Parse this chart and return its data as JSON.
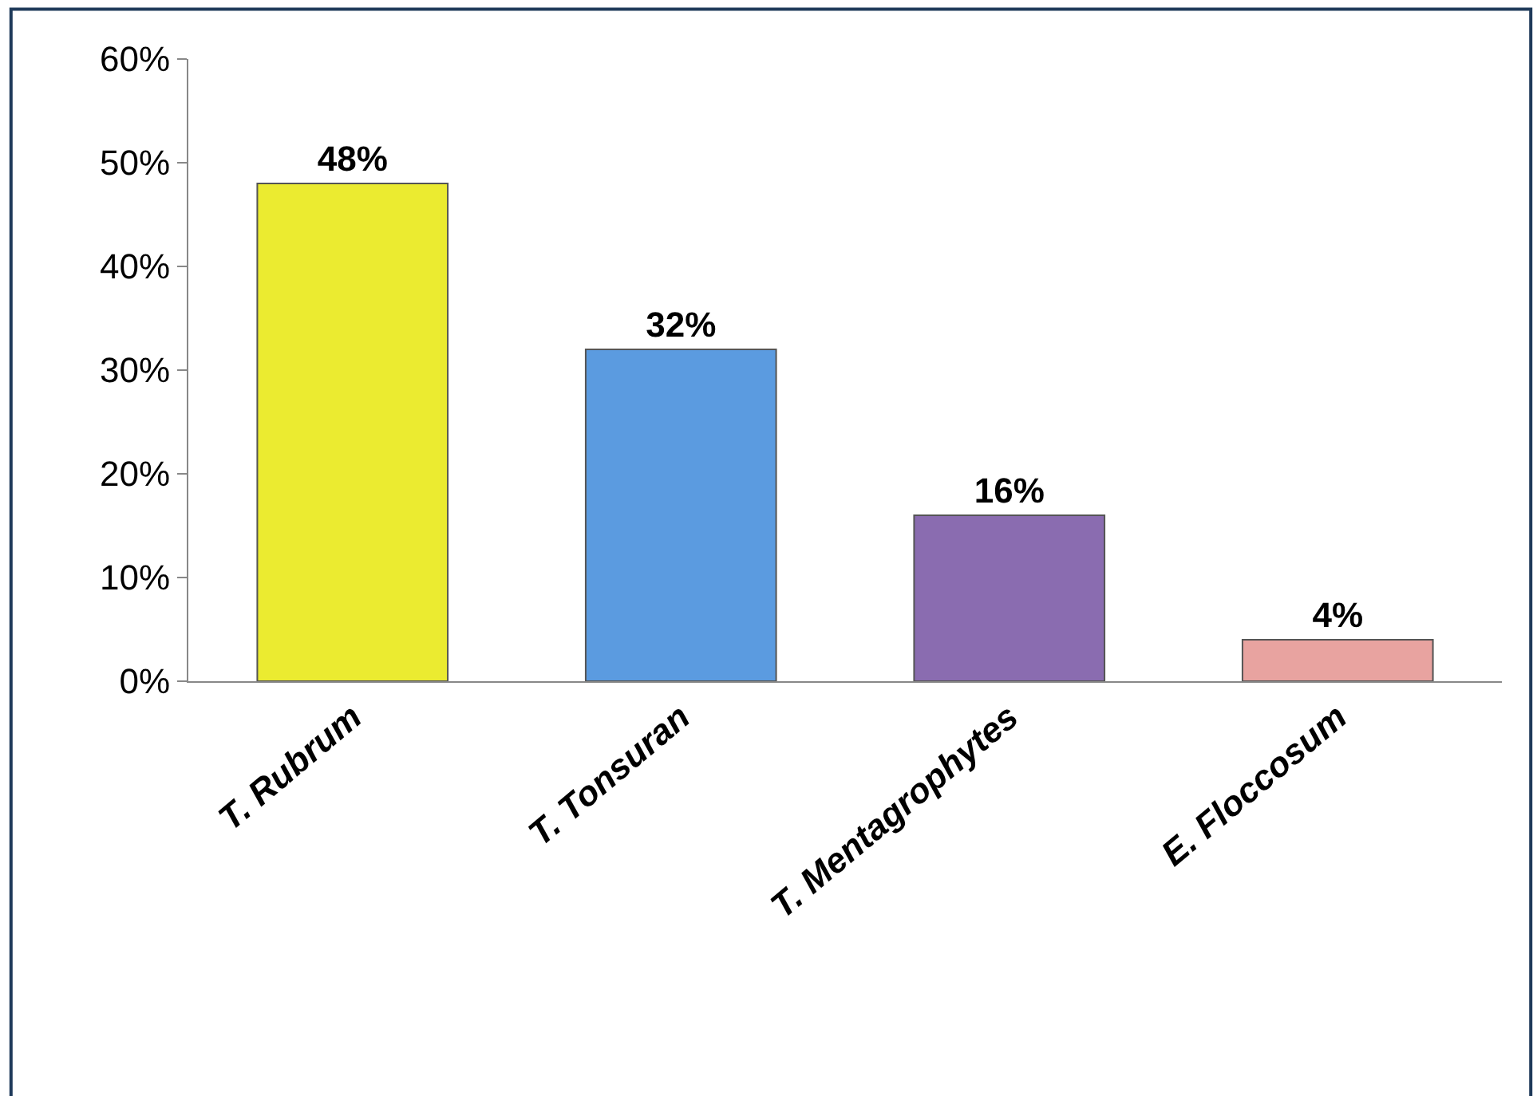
{
  "chart_data": {
    "type": "bar",
    "categories": [
      "T. Rubrum",
      "T. Tonsuran",
      "T. Mentagrophytes",
      "E. Floccosum"
    ],
    "values": [
      48,
      32,
      16,
      4
    ],
    "colors": [
      "#ebeb30",
      "#5b9be0",
      "#8a6cb0",
      "#e8a3a0"
    ],
    "value_labels": [
      "48%",
      "32%",
      "16%",
      "4%"
    ],
    "ylim": [
      0,
      60
    ],
    "yticks": [
      {
        "value": 0,
        "label": "0%"
      },
      {
        "value": 10,
        "label": "10%"
      },
      {
        "value": 20,
        "label": "20%"
      },
      {
        "value": 30,
        "label": "30%"
      },
      {
        "value": 40,
        "label": "40%"
      },
      {
        "value": 50,
        "label": "50%"
      },
      {
        "value": 60,
        "label": "60%"
      }
    ]
  }
}
